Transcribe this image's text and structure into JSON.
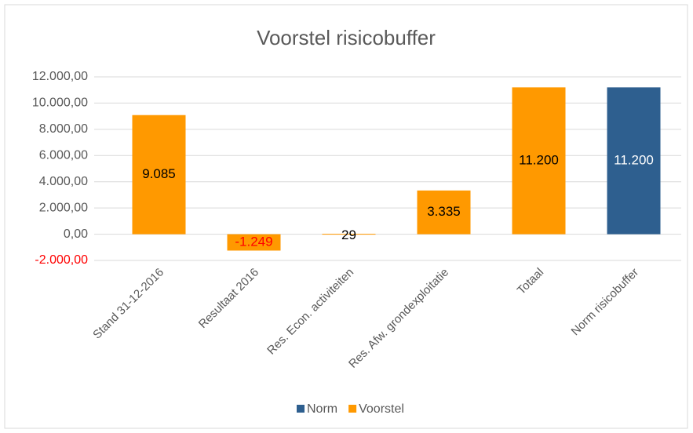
{
  "chart_data": {
    "type": "bar",
    "title": "Voorstel risicobuffer",
    "categories": [
      "Stand 31-12-2016",
      "Resultaat 2016",
      "Res. Econ. activiteiten",
      "Res. Afw. grondexploitatie",
      "Totaal",
      "Norm risicobuffer"
    ],
    "series": [
      {
        "name": "Norm",
        "color": "#2e5f8f",
        "label_color": "#ffffff",
        "values": [
          null,
          null,
          null,
          null,
          null,
          11200
        ],
        "value_labels": [
          null,
          null,
          null,
          null,
          null,
          "11.200"
        ]
      },
      {
        "name": "Voorstel",
        "color": "#ff9900",
        "label_color": "#000000",
        "values": [
          9085,
          -1249,
          29,
          3335,
          11200,
          null
        ],
        "value_labels": [
          "9.085",
          "-1.249",
          "29",
          "3.335",
          "11.200",
          null
        ]
      }
    ],
    "ylim": [
      -2000,
      12000
    ],
    "yticks": [
      {
        "value": -2000,
        "label": "-2.000,00"
      },
      {
        "value": 0,
        "label": "0,00"
      },
      {
        "value": 2000,
        "label": "2.000,00"
      },
      {
        "value": 4000,
        "label": "4.000,00"
      },
      {
        "value": 6000,
        "label": "6.000,00"
      },
      {
        "value": 8000,
        "label": "8.000,00"
      },
      {
        "value": 10000,
        "label": "10.000,00"
      },
      {
        "value": 12000,
        "label": "12.000,00"
      }
    ],
    "grid": true,
    "legend": "bottom",
    "negative_color": "#ff0000"
  }
}
